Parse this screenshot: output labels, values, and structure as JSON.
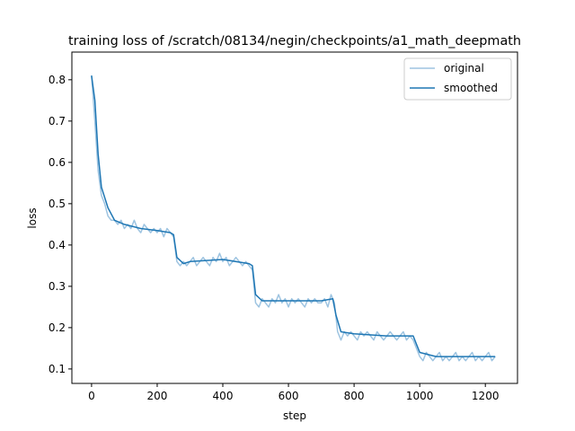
{
  "chart_data": {
    "type": "line",
    "title": "training loss of /scratch/08134/negin/checkpoints/a1_math_deepmath",
    "xlabel": "step",
    "ylabel": "loss",
    "xlim": [
      -60,
      1298
    ],
    "ylim": [
      0.065,
      0.867
    ],
    "xticks": [
      0,
      200,
      400,
      600,
      800,
      1000,
      1200
    ],
    "yticks": [
      0.1,
      0.2,
      0.3,
      0.4,
      0.5,
      0.6,
      0.7,
      0.8
    ],
    "legend_position": "top-right",
    "grid": false,
    "series": [
      {
        "name": "original",
        "color": "#9ec4e1",
        "x_start": 0,
        "x_step": 10,
        "values": [
          0.81,
          0.7,
          0.58,
          0.52,
          0.5,
          0.47,
          0.46,
          0.46,
          0.45,
          0.46,
          0.44,
          0.45,
          0.44,
          0.46,
          0.44,
          0.43,
          0.45,
          0.44,
          0.43,
          0.44,
          0.43,
          0.44,
          0.42,
          0.44,
          0.43,
          0.42,
          0.36,
          0.35,
          0.36,
          0.35,
          0.36,
          0.37,
          0.35,
          0.36,
          0.37,
          0.36,
          0.35,
          0.37,
          0.36,
          0.38,
          0.36,
          0.37,
          0.35,
          0.36,
          0.37,
          0.36,
          0.35,
          0.36,
          0.35,
          0.34,
          0.26,
          0.25,
          0.27,
          0.26,
          0.25,
          0.27,
          0.26,
          0.28,
          0.26,
          0.27,
          0.25,
          0.27,
          0.26,
          0.27,
          0.26,
          0.25,
          0.27,
          0.26,
          0.27,
          0.26,
          0.26,
          0.27,
          0.25,
          0.28,
          0.26,
          0.19,
          0.17,
          0.19,
          0.18,
          0.19,
          0.18,
          0.17,
          0.19,
          0.18,
          0.19,
          0.18,
          0.17,
          0.19,
          0.18,
          0.17,
          0.18,
          0.19,
          0.18,
          0.17,
          0.18,
          0.19,
          0.17,
          0.18,
          0.17,
          0.15,
          0.13,
          0.12,
          0.14,
          0.13,
          0.12,
          0.13,
          0.14,
          0.12,
          0.13,
          0.12,
          0.13,
          0.14,
          0.12,
          0.13,
          0.12,
          0.13,
          0.14,
          0.12,
          0.13,
          0.12,
          0.13,
          0.14,
          0.12,
          0.13
        ]
      },
      {
        "name": "smoothed",
        "color": "#1f77b4",
        "x": [
          0,
          10,
          20,
          30,
          50,
          70,
          100,
          150,
          200,
          240,
          250,
          260,
          280,
          300,
          400,
          480,
          490,
          500,
          520,
          600,
          700,
          735,
          745,
          760,
          800,
          900,
          980,
          990,
          1000,
          1050,
          1100,
          1200,
          1230
        ],
        "values": [
          0.81,
          0.75,
          0.62,
          0.54,
          0.49,
          0.46,
          0.45,
          0.44,
          0.435,
          0.43,
          0.425,
          0.37,
          0.355,
          0.36,
          0.365,
          0.355,
          0.35,
          0.28,
          0.265,
          0.265,
          0.265,
          0.27,
          0.23,
          0.19,
          0.185,
          0.18,
          0.18,
          0.16,
          0.14,
          0.13,
          0.13,
          0.13,
          0.13
        ]
      }
    ]
  }
}
